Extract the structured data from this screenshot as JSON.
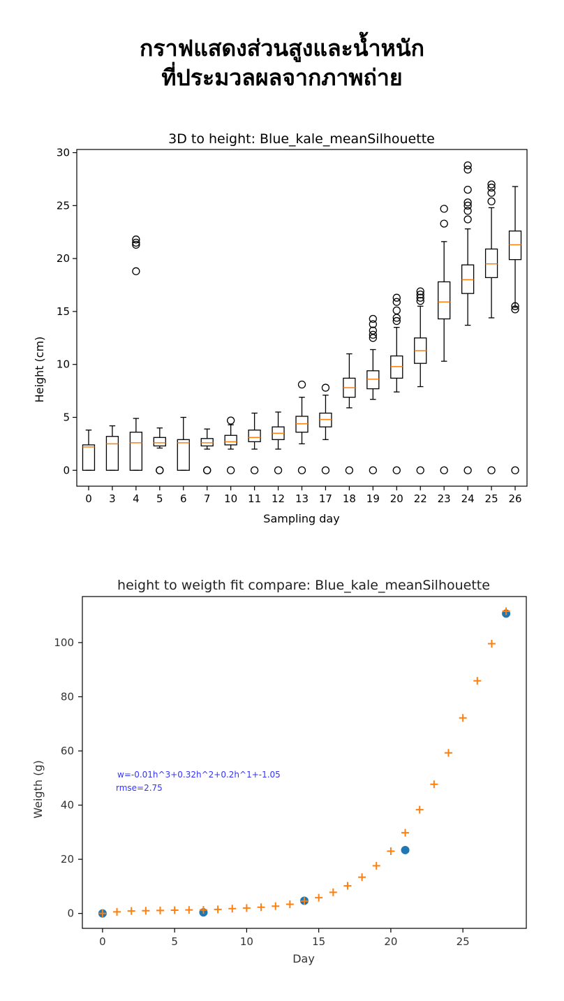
{
  "header": {
    "title_line1": "กราฟแสดงส่วนสูงและน้ำหนัก",
    "title_line2": "ที่ประมวลผลจากภาพถ่าย"
  },
  "colors": {
    "median": "#ff7f0e",
    "measured": "#1f77b4",
    "fitted": "#ff7f0e",
    "annotation": "#3333ff"
  },
  "chart_data": [
    {
      "type": "box",
      "title": "3D to height: Blue_kale_meanSilhouette",
      "xlabel": "Sampling day",
      "ylabel": "Height (cm)",
      "ylim": [
        -1.5,
        30.3
      ],
      "yticks": [
        0,
        5,
        10,
        15,
        20,
        25,
        30
      ],
      "grid": false,
      "categories": [
        "0",
        "3",
        "4",
        "5",
        "6",
        "7",
        "10",
        "11",
        "12",
        "13",
        "17",
        "18",
        "19",
        "20",
        "22",
        "23",
        "24",
        "25",
        "26"
      ],
      "boxes": [
        {
          "whislo": 0,
          "q1": 0,
          "med": 2.2,
          "q3": 2.4,
          "whishi": 3.8,
          "fliers": []
        },
        {
          "whislo": 0,
          "q1": 0,
          "med": 2.5,
          "q3": 3.2,
          "whishi": 4.2,
          "fliers": []
        },
        {
          "whislo": 0,
          "q1": 0,
          "med": 2.6,
          "q3": 3.6,
          "whishi": 4.9,
          "fliers": [
            18.8,
            21.3,
            21.5,
            21.8
          ]
        },
        {
          "whislo": 2.1,
          "q1": 2.3,
          "med": 2.6,
          "q3": 3.1,
          "whishi": 4.0,
          "fliers": [
            0,
            0
          ]
        },
        {
          "whislo": 0,
          "q1": 0,
          "med": 2.6,
          "q3": 2.9,
          "whishi": 5.0,
          "fliers": []
        },
        {
          "whislo": 2.0,
          "q1": 2.3,
          "med": 2.6,
          "q3": 3.0,
          "whishi": 3.9,
          "fliers": [
            0,
            0
          ]
        },
        {
          "whislo": 2.0,
          "q1": 2.4,
          "med": 2.7,
          "q3": 3.3,
          "whishi": 4.3,
          "fliers": [
            0,
            4.7
          ]
        },
        {
          "whislo": 2.0,
          "q1": 2.7,
          "med": 3.1,
          "q3": 3.8,
          "whishi": 5.4,
          "fliers": [
            0
          ]
        },
        {
          "whislo": 2.0,
          "q1": 2.9,
          "med": 3.5,
          "q3": 4.1,
          "whishi": 5.5,
          "fliers": [
            0
          ]
        },
        {
          "whislo": 2.5,
          "q1": 3.6,
          "med": 4.4,
          "q3": 5.1,
          "whishi": 6.9,
          "fliers": [
            0,
            8.1
          ]
        },
        {
          "whislo": 2.9,
          "q1": 4.1,
          "med": 4.8,
          "q3": 5.4,
          "whishi": 7.1,
          "fliers": [
            0,
            7.8
          ]
        },
        {
          "whislo": 5.9,
          "q1": 6.9,
          "med": 7.8,
          "q3": 8.7,
          "whishi": 11.0,
          "fliers": [
            0
          ]
        },
        {
          "whislo": 6.7,
          "q1": 7.7,
          "med": 8.6,
          "q3": 9.4,
          "whishi": 11.4,
          "fliers": [
            0,
            12.5,
            12.8,
            13.2,
            13.8,
            14.3
          ]
        },
        {
          "whislo": 7.4,
          "q1": 8.7,
          "med": 9.8,
          "q3": 10.8,
          "whishi": 13.5,
          "fliers": [
            0,
            14.1,
            14.4,
            15.1,
            15.9,
            16.3
          ]
        },
        {
          "whislo": 7.9,
          "q1": 10.1,
          "med": 11.3,
          "q3": 12.5,
          "whishi": 15.5,
          "fliers": [
            0,
            16.0,
            16.3,
            16.6,
            16.9
          ]
        },
        {
          "whislo": 10.3,
          "q1": 14.3,
          "med": 15.9,
          "q3": 17.8,
          "whishi": 21.6,
          "fliers": [
            0,
            23.3,
            24.7
          ]
        },
        {
          "whislo": 13.7,
          "q1": 16.7,
          "med": 18.0,
          "q3": 19.4,
          "whishi": 22.8,
          "fliers": [
            0,
            23.7,
            24.5,
            25.0,
            25.3,
            26.5,
            28.4,
            28.8
          ]
        },
        {
          "whislo": 14.4,
          "q1": 18.2,
          "med": 19.5,
          "q3": 20.9,
          "whishi": 24.8,
          "fliers": [
            0,
            25.4,
            26.2,
            26.7,
            27.0
          ]
        },
        {
          "whislo": 15.4,
          "q1": 19.9,
          "med": 21.3,
          "q3": 22.6,
          "whishi": 26.8,
          "fliers": [
            0,
            15.2,
            15.5
          ]
        }
      ]
    },
    {
      "type": "scatter",
      "title": "height to weigth fit compare: Blue_kale_meanSilhouette",
      "xlabel": "Day",
      "ylabel": "Weigth (g)",
      "xlim": [
        -1.4,
        29.4
      ],
      "ylim": [
        -5.5,
        117
      ],
      "xticks": [
        0,
        5,
        10,
        15,
        20,
        25
      ],
      "yticks": [
        0,
        20,
        40,
        60,
        80,
        100
      ],
      "grid": false,
      "annotation_line1": "w=-0.01h^3+0.32h^2+0.2h^1+-1.05",
      "annotation_line2": "rmse=2.75",
      "series": [
        {
          "marker": "circle",
          "color": "#1f77b4",
          "x": [
            0,
            7,
            14,
            21,
            28
          ],
          "y": [
            0,
            0.4,
            4.7,
            23.4,
            110.7
          ]
        },
        {
          "marker": "plus",
          "color": "#ff7f0e",
          "x": [
            0,
            1,
            2,
            3,
            4,
            5,
            6,
            7,
            8,
            9,
            10,
            11,
            12,
            13,
            14,
            15,
            16,
            17,
            18,
            19,
            20,
            21,
            22,
            23,
            24,
            25,
            26,
            27,
            28
          ],
          "y": [
            0,
            0.6,
            0.9,
            1.0,
            1.1,
            1.2,
            1.3,
            1.3,
            1.5,
            1.8,
            2.0,
            2.3,
            2.7,
            3.4,
            4.6,
            5.8,
            7.8,
            10.2,
            13.4,
            17.6,
            23.0,
            29.8,
            38.3,
            47.7,
            59.3,
            72.2,
            85.9,
            99.6,
            111.6
          ]
        }
      ]
    }
  ]
}
